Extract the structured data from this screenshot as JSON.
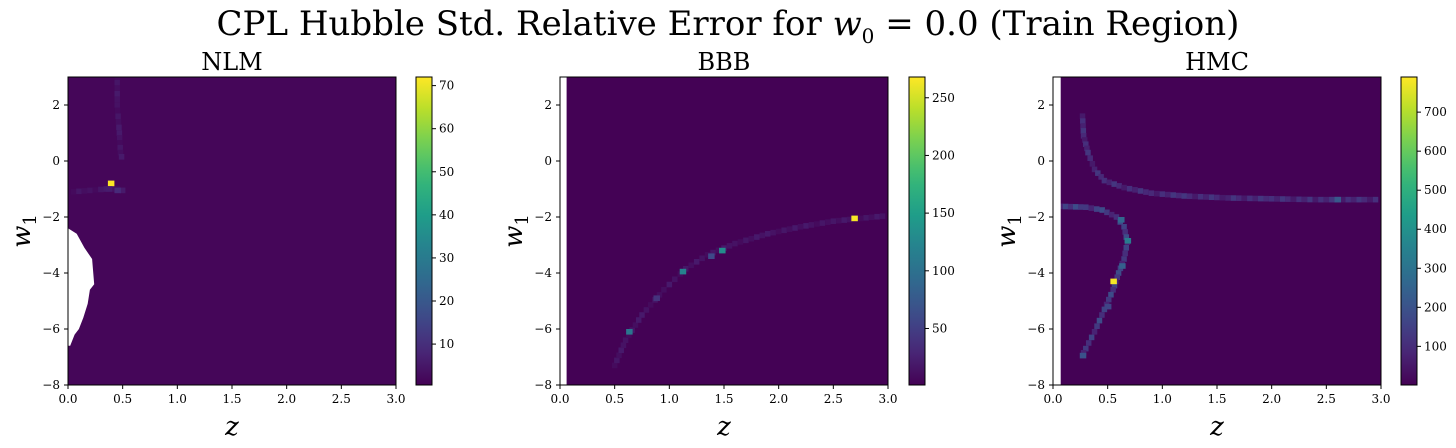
{
  "figure": {
    "title_prefix": "CPL Hubble Std.  Relative Error for ",
    "title_math_var": "w",
    "title_math_sub": "0",
    "title_suffix": " = 0.0 (Train Region)"
  },
  "colormap": "viridis",
  "chart_data": [
    {
      "type": "heatmap",
      "title": "NLM",
      "xlabel": "z",
      "ylabel": "w",
      "ylabel_sub": "1",
      "xlim": [
        0.0,
        3.0
      ],
      "ylim": [
        -8,
        3
      ],
      "xticks": [
        "0.0",
        "0.5",
        "1.0",
        "1.5",
        "2.0",
        "2.5",
        "3.0"
      ],
      "yticks": [
        "−8",
        "−6",
        "−4",
        "−2",
        "0",
        "2"
      ],
      "colorbar": {
        "min": 0.5,
        "max": 72,
        "ticks": [
          "10",
          "20",
          "30",
          "40",
          "50",
          "60",
          "70"
        ],
        "tick_values": [
          10,
          20,
          30,
          40,
          50,
          60,
          70
        ]
      },
      "background_value": 1.5,
      "masked_region": [
        [
          0.0,
          -2.4
        ],
        [
          0.08,
          -2.6
        ],
        [
          0.15,
          -3.1
        ],
        [
          0.22,
          -3.5
        ],
        [
          0.24,
          -4.4
        ],
        [
          0.2,
          -4.6
        ],
        [
          0.18,
          -5.1
        ],
        [
          0.14,
          -5.6
        ],
        [
          0.1,
          -6.0
        ],
        [
          0.06,
          -6.2
        ],
        [
          0.02,
          -6.6
        ],
        [
          0.0,
          -6.6
        ]
      ],
      "features": [
        {
          "kind": "point",
          "x": 0.39,
          "y": -0.8,
          "value": 72
        },
        {
          "kind": "point",
          "x": 0.45,
          "y": -1.05,
          "value": 9
        },
        {
          "kind": "point",
          "x": 0.37,
          "y": -1.0,
          "value": 6
        },
        {
          "kind": "curve",
          "value": 4,
          "points": [
            [
              0.45,
              3.0
            ],
            [
              0.45,
              2.0
            ],
            [
              0.47,
              1.0
            ],
            [
              0.48,
              0.3
            ],
            [
              0.5,
              0.0
            ]
          ]
        },
        {
          "kind": "curve",
          "value": 4,
          "points": [
            [
              0.05,
              -1.1
            ],
            [
              0.2,
              -1.05
            ],
            [
              0.35,
              -1.0
            ],
            [
              0.45,
              -1.0
            ],
            [
              0.55,
              -1.1
            ]
          ]
        }
      ]
    },
    {
      "type": "heatmap",
      "title": "BBB",
      "xlabel": "z",
      "ylabel": "w",
      "ylabel_sub": "1",
      "xlim": [
        0.0,
        3.0
      ],
      "ylim": [
        -8,
        3
      ],
      "xticks": [
        "0.0",
        "0.5",
        "1.0",
        "1.5",
        "2.0",
        "2.5",
        "3.0"
      ],
      "yticks": [
        "−8",
        "−6",
        "−4",
        "−2",
        "0",
        "2"
      ],
      "colorbar": {
        "min": 1,
        "max": 268,
        "ticks": [
          "50",
          "100",
          "150",
          "200",
          "250"
        ],
        "tick_values": [
          50,
          100,
          150,
          200,
          250
        ]
      },
      "background_value": 2,
      "masked_region": [
        [
          0.0,
          3.0
        ],
        [
          0.06,
          3.0
        ],
        [
          0.06,
          -8.0
        ],
        [
          0.0,
          -8.0
        ]
      ],
      "features": [
        {
          "kind": "curve",
          "value": 14,
          "points": [
            [
              0.5,
              -7.3
            ],
            [
              0.6,
              -6.4
            ],
            [
              0.75,
              -5.5
            ],
            [
              0.95,
              -4.6
            ],
            [
              1.15,
              -3.85
            ],
            [
              1.35,
              -3.35
            ],
            [
              1.6,
              -2.95
            ],
            [
              1.9,
              -2.6
            ],
            [
              2.2,
              -2.35
            ],
            [
              2.5,
              -2.15
            ],
            [
              2.75,
              -2.05
            ],
            [
              3.0,
              -1.95
            ]
          ]
        },
        {
          "kind": "point",
          "x": 2.69,
          "y": -2.05,
          "value": 265
        },
        {
          "kind": "point",
          "x": 1.48,
          "y": -3.2,
          "value": 130
        },
        {
          "kind": "point",
          "x": 1.12,
          "y": -3.95,
          "value": 120
        },
        {
          "kind": "point",
          "x": 1.38,
          "y": -3.4,
          "value": 60
        },
        {
          "kind": "point",
          "x": 0.63,
          "y": -6.1,
          "value": 105
        },
        {
          "kind": "point",
          "x": 0.88,
          "y": -4.9,
          "value": 40
        }
      ]
    },
    {
      "type": "heatmap",
      "title": "HMC",
      "xlabel": "z",
      "ylabel": "w",
      "ylabel_sub": "1",
      "xlim": [
        0.0,
        3.0
      ],
      "ylim": [
        -8,
        3
      ],
      "xticks": [
        "0.0",
        "0.5",
        "1.0",
        "1.5",
        "2.0",
        "2.5",
        "3.0"
      ],
      "yticks": [
        "−8",
        "−6",
        "−4",
        "−2",
        "0",
        "2"
      ],
      "colorbar": {
        "min": 1,
        "max": 790,
        "ticks": [
          "100",
          "200",
          "300",
          "400",
          "500",
          "600",
          "700"
        ],
        "tick_values": [
          100,
          200,
          300,
          400,
          500,
          600,
          700
        ]
      },
      "background_value": 3,
      "masked_region": [
        [
          0.0,
          3.0
        ],
        [
          0.07,
          3.0
        ],
        [
          0.07,
          -8.0
        ],
        [
          0.0,
          -8.0
        ]
      ],
      "features": [
        {
          "kind": "curve",
          "value": 90,
          "points": [
            [
              0.27,
              1.6
            ],
            [
              0.28,
              0.9
            ],
            [
              0.32,
              0.3
            ],
            [
              0.38,
              -0.3
            ],
            [
              0.47,
              -0.7
            ],
            [
              0.65,
              -0.95
            ],
            [
              0.9,
              -1.15
            ],
            [
              1.2,
              -1.25
            ],
            [
              1.6,
              -1.32
            ],
            [
              2.0,
              -1.35
            ],
            [
              2.4,
              -1.38
            ],
            [
              3.0,
              -1.38
            ]
          ]
        },
        {
          "kind": "curve",
          "value": 130,
          "points": [
            [
              0.07,
              -1.62
            ],
            [
              0.3,
              -1.65
            ],
            [
              0.45,
              -1.75
            ],
            [
              0.58,
              -2.0
            ],
            [
              0.65,
              -2.35
            ],
            [
              0.68,
              -2.9
            ],
            [
              0.65,
              -3.5
            ],
            [
              0.6,
              -4.0
            ],
            [
              0.55,
              -4.6
            ],
            [
              0.47,
              -5.3
            ],
            [
              0.38,
              -6.1
            ],
            [
              0.3,
              -6.7
            ],
            [
              0.26,
              -7.0
            ]
          ]
        },
        {
          "kind": "point",
          "x": 0.55,
          "y": -4.3,
          "value": 780
        },
        {
          "kind": "point",
          "x": 0.68,
          "y": -2.85,
          "value": 330
        },
        {
          "kind": "point",
          "x": 0.62,
          "y": -2.1,
          "value": 260
        },
        {
          "kind": "point",
          "x": 0.63,
          "y": -3.75,
          "value": 240
        },
        {
          "kind": "point",
          "x": 2.6,
          "y": -1.38,
          "value": 220
        },
        {
          "kind": "point",
          "x": 0.27,
          "y": -6.95,
          "value": 200
        },
        {
          "kind": "point",
          "x": 0.5,
          "y": -5.2,
          "value": 160
        }
      ]
    }
  ]
}
